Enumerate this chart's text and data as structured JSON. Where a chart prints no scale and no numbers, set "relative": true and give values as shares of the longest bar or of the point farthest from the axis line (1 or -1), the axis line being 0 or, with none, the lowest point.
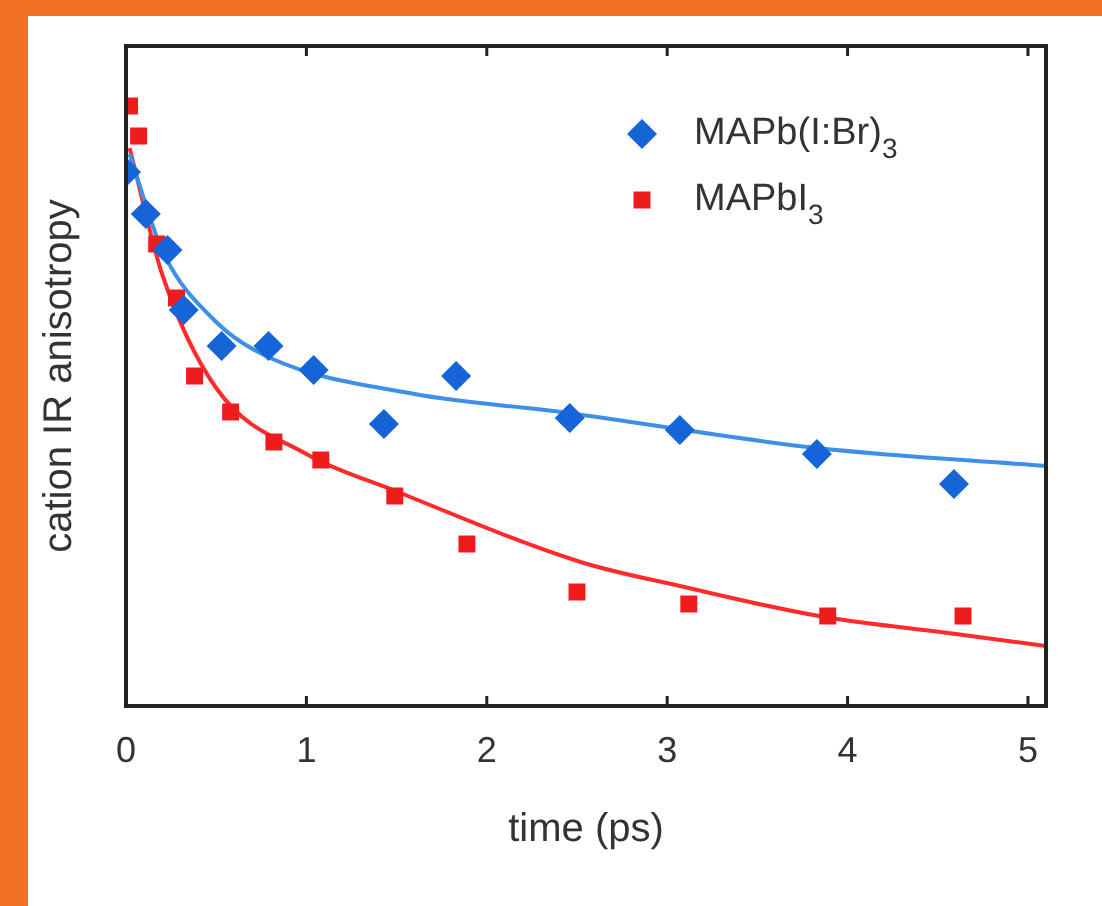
{
  "chart_data": {
    "type": "scatter",
    "xlabel": "time (ps)",
    "ylabel": "cation IR anisotropy",
    "relative": true,
    "xlim": [
      0,
      5.1
    ],
    "xticks": [
      0,
      1,
      2,
      3,
      4,
      5
    ],
    "legend": "top right",
    "grid": false,
    "series": [
      {
        "name": "MAPb(I:Br)$_{3}$",
        "color": "#1565d8",
        "marker": "diamond",
        "x": [
          0,
          0.11,
          0.23,
          0.32,
          0.53,
          0.79,
          1.04,
          1.43,
          1.83,
          2.46,
          3.07,
          3.83,
          4.59
        ],
        "values": [
          0.89,
          0.82,
          0.76,
          0.66,
          0.6,
          0.6,
          0.56,
          0.47,
          0.55,
          0.48,
          0.46,
          0.42,
          0.37
        ]
      },
      {
        "name": "MAPbI$_{3}$",
        "color": "#ee1c1c",
        "marker": "square",
        "x": [
          0.02,
          0.07,
          0.17,
          0.28,
          0.38,
          0.58,
          0.82,
          1.08,
          1.49,
          1.89,
          2.5,
          3.12,
          3.89,
          4.64
        ],
        "values": [
          1,
          0.95,
          0.77,
          0.68,
          0.55,
          0.49,
          0.44,
          0.41,
          0.35,
          0.27,
          0.19,
          0.17,
          0.15,
          0.15
        ]
      },
      {
        "type": "line",
        "color": "#3d8fe8",
        "marker": "none",
        "x": [
          0.02,
          0.2,
          0.5,
          0.8,
          1.6,
          2.41,
          3.83,
          5.1
        ],
        "values": [
          0.92,
          0.76,
          0.64,
          0.58,
          0.52,
          0.49,
          0.43,
          0.4
        ]
      },
      {
        "type": "line",
        "color": "#ff2a2a",
        "marker": "none",
        "x": [
          0.02,
          0.2,
          0.5,
          1,
          1.48,
          2.52,
          3.07,
          3.84,
          4.6,
          5.1
        ],
        "values": [
          0.93,
          0.72,
          0.53,
          0.42,
          0.36,
          0.24,
          0.2,
          0.15,
          0.12,
          0.1
        ]
      }
    ]
  }
}
